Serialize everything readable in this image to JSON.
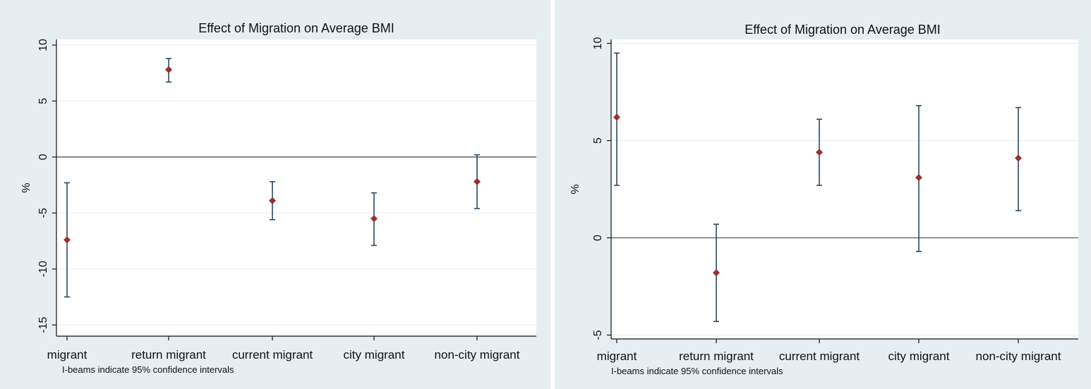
{
  "chart_data": [
    {
      "type": "scatter",
      "title": "Effect of Migration on Average BMI",
      "ylabel": "%",
      "xlabel": "",
      "categories": [
        "migrant",
        "return migrant",
        "current migrant",
        "city migrant",
        "non-city migrant"
      ],
      "ylim": [
        -16,
        10.5
      ],
      "yticks": [
        10,
        5,
        0,
        -5,
        -10,
        -15
      ],
      "grid": true,
      "note": "I-beams indicate 95% confidence intervals",
      "series": [
        {
          "estimate": [
            -7.4,
            7.8,
            -3.9,
            -5.5,
            -2.2
          ],
          "ci_low": [
            -12.5,
            6.7,
            -5.6,
            -7.9,
            -4.6
          ],
          "ci_high": [
            -2.3,
            8.8,
            -2.2,
            -3.2,
            0.2
          ]
        }
      ],
      "colors": {
        "point": "#9b2f2f",
        "ci": "#2e4a5e",
        "background": "#e6eef2"
      }
    },
    {
      "type": "scatter",
      "title": "Effect of Migration on Average BMI",
      "ylabel": "%",
      "xlabel": "",
      "categories": [
        "migrant",
        "return migrant",
        "current migrant",
        "city migrant",
        "non-city migrant"
      ],
      "ylim": [
        -5.2,
        10.2
      ],
      "yticks": [
        10,
        5,
        0,
        -5
      ],
      "grid": true,
      "note": "I-beams indicate 95% confidence intervals",
      "series": [
        {
          "estimate": [
            6.2,
            -1.8,
            4.4,
            3.1,
            4.1
          ],
          "ci_low": [
            2.7,
            -4.3,
            2.7,
            -0.7,
            1.4
          ],
          "ci_high": [
            9.5,
            0.7,
            6.1,
            6.8,
            6.7
          ]
        }
      ],
      "colors": {
        "point": "#9b2f2f",
        "ci": "#2e4a5e",
        "background": "#e6eef2"
      }
    }
  ]
}
